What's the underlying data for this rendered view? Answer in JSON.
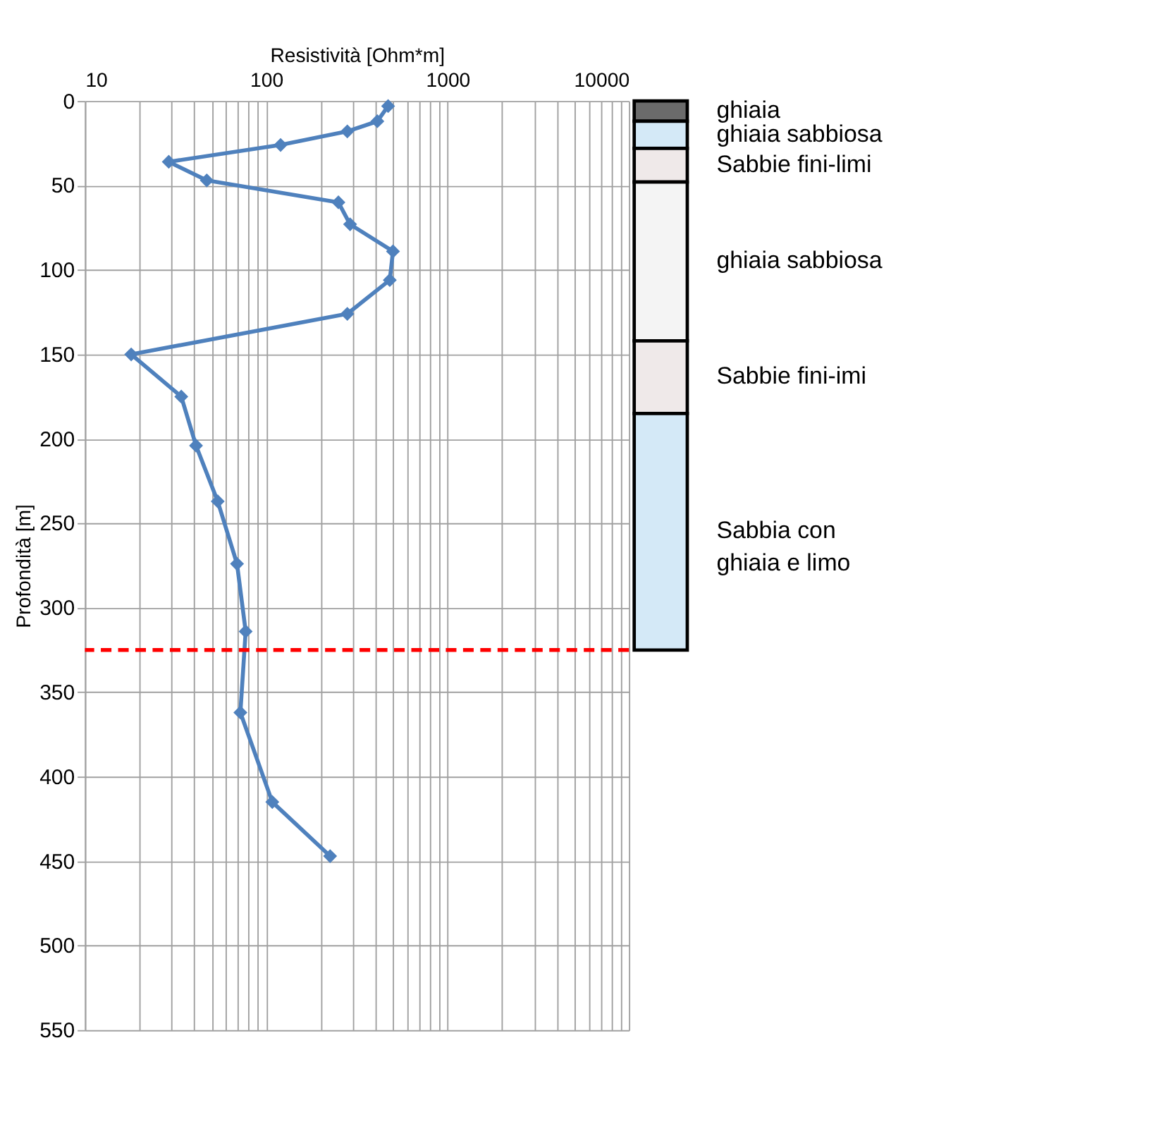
{
  "chart_data": [
    {
      "type": "line",
      "xlabel": "Resistività [Ohm*m]",
      "ylabel": "Profondità [m]",
      "log": "x",
      "marker": "diamond",
      "line_style": "solid",
      "grid": true,
      "series": [
        {
          "color": "#4f81bd",
          "x": [
            470,
            410,
            280,
            120,
            29,
            47,
            250,
            290,
            500,
            480,
            280,
            18,
            34,
            41,
            54,
            69,
            77,
            72,
            108,
            225
          ],
          "values": [
            3,
            12,
            18,
            26,
            36,
            47,
            60,
            73,
            89,
            106,
            126,
            150,
            175,
            204,
            237,
            274,
            314,
            362,
            415,
            447
          ]
        }
      ],
      "xlim": [
        10,
        10000
      ],
      "xticks": [
        10,
        {
          "value": 20,
          "label": null
        },
        {
          "value": 30,
          "label": null
        },
        {
          "value": 40,
          "label": null
        },
        {
          "value": 50,
          "label": null
        },
        {
          "value": 60,
          "label": null
        },
        {
          "value": 70,
          "label": null
        },
        {
          "value": 80,
          "label": null
        },
        {
          "value": 90,
          "label": null
        },
        100,
        {
          "value": 200,
          "label": null
        },
        {
          "value": 300,
          "label": null
        },
        {
          "value": 400,
          "label": null
        },
        {
          "value": 500,
          "label": null
        },
        {
          "value": 600,
          "label": null
        },
        {
          "value": 700,
          "label": null
        },
        {
          "value": 800,
          "label": null
        },
        {
          "value": 900,
          "label": null
        },
        1000,
        {
          "value": 2000,
          "label": null
        },
        {
          "value": 3000,
          "label": null
        },
        {
          "value": 4000,
          "label": null
        },
        {
          "value": 5000,
          "label": null
        },
        {
          "value": 6000,
          "label": null
        },
        {
          "value": 7000,
          "label": null
        },
        {
          "value": 8000,
          "label": null
        },
        {
          "value": 9000,
          "label": null
        },
        10000
      ],
      "ylim": [
        550,
        0
      ],
      "yticks": [
        0,
        50,
        100,
        150,
        200,
        250,
        300,
        350,
        400,
        450,
        500,
        550
      ],
      "ref_lines": [
        {
          "axis": "y",
          "value": 325,
          "color": "#ff0000",
          "line_style": "dashed"
        }
      ]
    },
    {
      "type": "bar",
      "stacked": true,
      "categories": [
        null
      ],
      "ylim": [
        550,
        0
      ],
      "tick_labels": false,
      "grid": false,
      "series": [
        {
          "name": "ghiaia",
          "color": "#6b6b6b",
          "values": [
            12
          ]
        },
        {
          "name": "ghiaia sabbiosa",
          "color": "#d4e9f7",
          "values": [
            16
          ]
        },
        {
          "name": "Sabbie fini-limi",
          "color": "#efe9e9",
          "values": [
            20
          ]
        },
        {
          "name": "ghiaia sabbiosa",
          "color": "#f4f4f4",
          "values": [
            94
          ]
        },
        {
          "name": "Sabbie fini-imi",
          "color": "#efe9e9",
          "values": [
            43
          ]
        },
        {
          "name": "Sabbia con ghiaia e limo",
          "color": "#d4e9f7",
          "values": [
            140
          ]
        }
      ]
    }
  ]
}
